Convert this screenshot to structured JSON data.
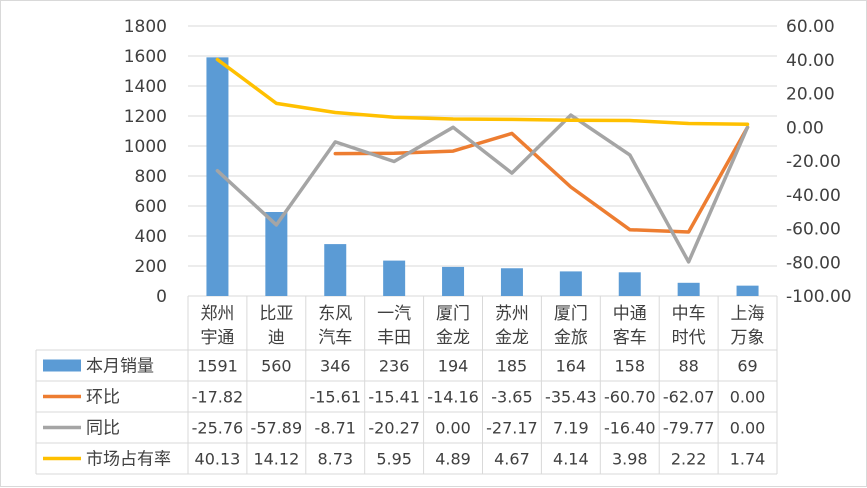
{
  "chart_data": {
    "type": "bar+line",
    "categories": [
      "郑州宇通",
      "比亚迪",
      "东风汽车",
      "一汽丰田",
      "厦门金龙",
      "苏州金龙",
      "厦门金旅",
      "中通客车",
      "中车时代",
      "上海万象"
    ],
    "category_lines": [
      [
        "郑州",
        "宇通"
      ],
      [
        "比亚",
        "迪"
      ],
      [
        "东风",
        "汽车"
      ],
      [
        "一汽",
        "丰田"
      ],
      [
        "厦门",
        "金龙"
      ],
      [
        "苏州",
        "金龙"
      ],
      [
        "厦门",
        "金旅"
      ],
      [
        "中通",
        "客车"
      ],
      [
        "中车",
        "时代"
      ],
      [
        "上海",
        "万象"
      ]
    ],
    "left_axis": {
      "min": 0,
      "max": 1800,
      "ticks": [
        "0",
        "200",
        "400",
        "600",
        "800",
        "1000",
        "1200",
        "1400",
        "1600",
        "1800"
      ]
    },
    "right_axis": {
      "min": -100,
      "max": 60,
      "ticks": [
        "-100.00",
        "-80.00",
        "-60.00",
        "-40.00",
        "-20.00",
        "0.00",
        "20.00",
        "40.00",
        "60.00"
      ]
    },
    "series": [
      {
        "name": "本月销量",
        "type": "bar",
        "axis": "left",
        "color": "#5b9bd5",
        "values": [
          1591,
          560,
          346,
          236,
          194,
          185,
          164,
          158,
          88,
          69
        ],
        "labels": [
          "1591",
          "560",
          "346",
          "236",
          "194",
          "185",
          "164",
          "158",
          "88",
          "69"
        ]
      },
      {
        "name": "环比",
        "type": "line",
        "axis": "right",
        "color": "#ed7d31",
        "values": [
          -17.82,
          null,
          -15.61,
          -15.41,
          -14.16,
          -3.65,
          -35.43,
          -60.7,
          -62.07,
          0.0
        ],
        "labels": [
          "-17.82",
          "",
          "-15.61",
          "-15.41",
          "-14.16",
          "-3.65",
          "-35.43",
          "-60.70",
          "-62.07",
          "0.00"
        ]
      },
      {
        "name": "同比",
        "type": "line",
        "axis": "right",
        "color": "#a5a5a5",
        "values": [
          -25.76,
          -57.89,
          -8.71,
          -20.27,
          0.0,
          -27.17,
          7.19,
          -16.4,
          -79.77,
          0.0
        ],
        "labels": [
          "-25.76",
          "-57.89",
          "-8.71",
          "-20.27",
          "0.00",
          "-27.17",
          "7.19",
          "-16.40",
          "-79.77",
          "0.00"
        ]
      },
      {
        "name": "市场占有率",
        "type": "line",
        "axis": "right",
        "color": "#ffc000",
        "values": [
          40.13,
          14.12,
          8.73,
          5.95,
          4.89,
          4.67,
          4.14,
          3.98,
          2.22,
          1.74
        ],
        "labels": [
          "40.13",
          "14.12",
          "8.73",
          "5.95",
          "4.89",
          "4.67",
          "4.14",
          "3.98",
          "2.22",
          "1.74"
        ]
      }
    ],
    "grid": true,
    "legend": "data-table"
  }
}
